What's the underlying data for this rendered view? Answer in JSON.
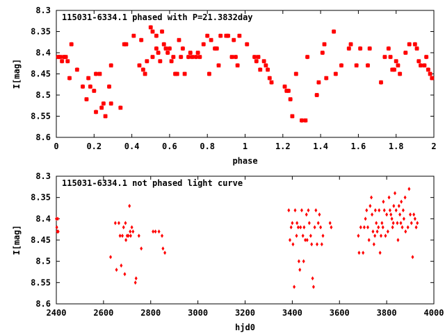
{
  "chart_data": [
    {
      "type": "scatter",
      "title": "115031-6334.1 phased with P=21.3832day",
      "xlabel": "phase",
      "ylabel": "I[mag]",
      "xlim": [
        0,
        2
      ],
      "ylim": [
        8.6,
        8.3
      ],
      "y_inverted": true,
      "xticks": [
        "0",
        "0.2",
        "0.4",
        "0.6",
        "0.8",
        "1",
        "1.2",
        "1.4",
        "1.6",
        "1.8",
        "2"
      ],
      "yticks": [
        "8.3",
        "8.35",
        "8.4",
        "8.45",
        "8.5",
        "8.55",
        "8.6"
      ],
      "grid": false,
      "marker": "plus-star",
      "color": "#ff0000",
      "series": [
        {
          "points": [
            [
              0.01,
              8.41
            ],
            [
              0.02,
              8.41
            ],
            [
              0.03,
              8.42
            ],
            [
              0.04,
              8.41
            ],
            [
              0.05,
              8.41
            ],
            [
              0.06,
              8.42
            ],
            [
              0.07,
              8.46
            ],
            [
              0.08,
              8.38
            ],
            [
              0.11,
              8.44
            ],
            [
              0.14,
              8.48
            ],
            [
              0.16,
              8.51
            ],
            [
              0.17,
              8.46
            ],
            [
              0.18,
              8.48
            ],
            [
              0.2,
              8.49
            ],
            [
              0.21,
              8.45
            ],
            [
              0.21,
              8.54
            ],
            [
              0.23,
              8.45
            ],
            [
              0.24,
              8.53
            ],
            [
              0.25,
              8.52
            ],
            [
              0.26,
              8.55
            ],
            [
              0.28,
              8.48
            ],
            [
              0.29,
              8.52
            ],
            [
              0.29,
              8.43
            ],
            [
              0.34,
              8.53
            ],
            [
              0.36,
              8.38
            ],
            [
              0.37,
              8.38
            ],
            [
              0.41,
              8.36
            ],
            [
              0.44,
              8.43
            ],
            [
              0.45,
              8.37
            ],
            [
              0.46,
              8.44
            ],
            [
              0.47,
              8.45
            ],
            [
              0.48,
              8.42
            ],
            [
              0.5,
              8.34
            ],
            [
              0.51,
              8.35
            ],
            [
              0.51,
              8.41
            ],
            [
              0.53,
              8.36
            ],
            [
              0.53,
              8.39
            ],
            [
              0.54,
              8.4
            ],
            [
              0.55,
              8.42
            ],
            [
              0.56,
              8.35
            ],
            [
              0.57,
              8.38
            ],
            [
              0.58,
              8.39
            ],
            [
              0.59,
              8.4
            ],
            [
              0.6,
              8.39
            ],
            [
              0.61,
              8.42
            ],
            [
              0.62,
              8.41
            ],
            [
              0.63,
              8.45
            ],
            [
              0.64,
              8.45
            ],
            [
              0.65,
              8.37
            ],
            [
              0.66,
              8.41
            ],
            [
              0.67,
              8.39
            ],
            [
              0.68,
              8.45
            ],
            [
              0.7,
              8.41
            ],
            [
              0.71,
              8.4
            ],
            [
              0.72,
              8.41
            ],
            [
              0.74,
              8.41
            ],
            [
              0.75,
              8.4
            ],
            [
              0.76,
              8.41
            ],
            [
              0.78,
              8.38
            ],
            [
              0.8,
              8.36
            ],
            [
              0.81,
              8.45
            ],
            [
              0.82,
              8.37
            ],
            [
              0.84,
              8.39
            ],
            [
              0.85,
              8.39
            ],
            [
              0.86,
              8.43
            ],
            [
              0.87,
              8.36
            ],
            [
              0.9,
              8.36
            ],
            [
              0.91,
              8.36
            ],
            [
              0.93,
              8.41
            ],
            [
              0.94,
              8.37
            ],
            [
              0.95,
              8.41
            ],
            [
              0.96,
              8.43
            ],
            [
              0.97,
              8.36
            ],
            [
              1.01,
              8.38
            ],
            [
              1.05,
              8.41
            ],
            [
              1.06,
              8.42
            ],
            [
              1.07,
              8.41
            ],
            [
              1.08,
              8.44
            ],
            [
              1.1,
              8.42
            ],
            [
              1.11,
              8.43
            ],
            [
              1.12,
              8.44
            ],
            [
              1.13,
              8.46
            ],
            [
              1.14,
              8.47
            ],
            [
              1.21,
              8.48
            ],
            [
              1.22,
              8.49
            ],
            [
              1.23,
              8.49
            ],
            [
              1.24,
              8.51
            ],
            [
              1.25,
              8.55
            ],
            [
              1.27,
              8.45
            ],
            [
              1.3,
              8.56
            ],
            [
              1.32,
              8.56
            ],
            [
              1.33,
              8.41
            ],
            [
              1.38,
              8.5
            ],
            [
              1.39,
              8.47
            ],
            [
              1.41,
              8.4
            ],
            [
              1.42,
              8.38
            ],
            [
              1.43,
              8.46
            ],
            [
              1.47,
              8.35
            ],
            [
              1.48,
              8.45
            ],
            [
              1.51,
              8.43
            ],
            [
              1.55,
              8.39
            ],
            [
              1.56,
              8.38
            ],
            [
              1.59,
              8.43
            ],
            [
              1.61,
              8.39
            ],
            [
              1.65,
              8.43
            ],
            [
              1.66,
              8.39
            ],
            [
              1.72,
              8.47
            ],
            [
              1.74,
              8.41
            ],
            [
              1.76,
              8.39
            ],
            [
              1.77,
              8.41
            ],
            [
              1.78,
              8.44
            ],
            [
              1.79,
              8.44
            ],
            [
              1.8,
              8.42
            ],
            [
              1.81,
              8.43
            ],
            [
              1.82,
              8.45
            ],
            [
              1.85,
              8.4
            ],
            [
              1.87,
              8.38
            ],
            [
              1.9,
              8.38
            ],
            [
              1.91,
              8.39
            ],
            [
              1.92,
              8.42
            ],
            [
              1.93,
              8.43
            ],
            [
              1.95,
              8.43
            ],
            [
              1.96,
              8.41
            ],
            [
              1.97,
              8.44
            ],
            [
              1.98,
              8.45
            ],
            [
              1.99,
              8.46
            ]
          ]
        }
      ]
    },
    {
      "type": "scatter",
      "title": "115031-6334.1 not phased light curve",
      "xlabel": "hjd0",
      "ylabel": "I[mag]",
      "xlim": [
        2400,
        4000
      ],
      "ylim": [
        8.6,
        8.3
      ],
      "y_inverted": true,
      "xticks": [
        "2400",
        "2600",
        "2800",
        "3000",
        "3200",
        "3400",
        "3600",
        "3800",
        "4000"
      ],
      "yticks": [
        "8.3",
        "8.35",
        "8.4",
        "8.45",
        "8.5",
        "8.55",
        "8.6"
      ],
      "grid": false,
      "marker": "diamond",
      "color": "#ff0000",
      "series": [
        {
          "points": [
            [
              2400,
              8.4
            ],
            [
              2402,
              8.42
            ],
            [
              2404,
              8.43
            ],
            [
              2406,
              8.4
            ],
            [
              2408,
              8.43
            ],
            [
              2630,
              8.49
            ],
            [
              2650,
              8.41
            ],
            [
              2655,
              8.52
            ],
            [
              2665,
              8.41
            ],
            [
              2670,
              8.44
            ],
            [
              2675,
              8.51
            ],
            [
              2680,
              8.44
            ],
            [
              2685,
              8.42
            ],
            [
              2690,
              8.53
            ],
            [
              2693,
              8.41
            ],
            [
              2695,
              8.45
            ],
            [
              2700,
              8.44
            ],
            [
              2705,
              8.44
            ],
            [
              2710,
              8.37
            ],
            [
              2713,
              8.43
            ],
            [
              2715,
              8.44
            ],
            [
              2720,
              8.42
            ],
            [
              2725,
              8.43
            ],
            [
              2735,
              8.55
            ],
            [
              2738,
              8.54
            ],
            [
              2750,
              8.44
            ],
            [
              2760,
              8.47
            ],
            [
              2810,
              8.43
            ],
            [
              2820,
              8.43
            ],
            [
              2835,
              8.43
            ],
            [
              2848,
              8.44
            ],
            [
              2852,
              8.47
            ],
            [
              2860,
              8.48
            ],
            [
              3385,
              8.38
            ],
            [
              3390,
              8.45
            ],
            [
              3395,
              8.42
            ],
            [
              3400,
              8.41
            ],
            [
              3403,
              8.46
            ],
            [
              3408,
              8.56
            ],
            [
              3412,
              8.38
            ],
            [
              3418,
              8.44
            ],
            [
              3420,
              8.41
            ],
            [
              3425,
              8.42
            ],
            [
              3428,
              8.5
            ],
            [
              3432,
              8.52
            ],
            [
              3435,
              8.42
            ],
            [
              3440,
              8.38
            ],
            [
              3445,
              8.44
            ],
            [
              3448,
              8.5
            ],
            [
              3450,
              8.42
            ],
            [
              3455,
              8.45
            ],
            [
              3460,
              8.39
            ],
            [
              3463,
              8.45
            ],
            [
              3468,
              8.38
            ],
            [
              3472,
              8.41
            ],
            [
              3478,
              8.44
            ],
            [
              3482,
              8.46
            ],
            [
              3486,
              8.54
            ],
            [
              3490,
              8.56
            ],
            [
              3495,
              8.42
            ],
            [
              3500,
              8.38
            ],
            [
              3505,
              8.46
            ],
            [
              3510,
              8.41
            ],
            [
              3515,
              8.39
            ],
            [
              3520,
              8.42
            ],
            [
              3525,
              8.46
            ],
            [
              3530,
              8.44
            ],
            [
              3560,
              8.41
            ],
            [
              3565,
              8.42
            ],
            [
              3680,
              8.44
            ],
            [
              3683,
              8.48
            ],
            [
              3690,
              8.42
            ],
            [
              3700,
              8.48
            ],
            [
              3705,
              8.42
            ],
            [
              3710,
              8.4
            ],
            [
              3715,
              8.38
            ],
            [
              3720,
              8.42
            ],
            [
              3725,
              8.45
            ],
            [
              3730,
              8.37
            ],
            [
              3735,
              8.35
            ],
            [
              3738,
              8.39
            ],
            [
              3742,
              8.43
            ],
            [
              3746,
              8.46
            ],
            [
              3750,
              8.44
            ],
            [
              3752,
              8.38
            ],
            [
              3756,
              8.41
            ],
            [
              3760,
              8.43
            ],
            [
              3765,
              8.42
            ],
            [
              3768,
              8.38
            ],
            [
              3772,
              8.48
            ],
            [
              3776,
              8.44
            ],
            [
              3780,
              8.41
            ],
            [
              3784,
              8.42
            ],
            [
              3786,
              8.36
            ],
            [
              3790,
              8.38
            ],
            [
              3795,
              8.44
            ],
            [
              3800,
              8.39
            ],
            [
              3805,
              8.43
            ],
            [
              3810,
              8.35
            ],
            [
              3814,
              8.38
            ],
            [
              3818,
              8.39
            ],
            [
              3822,
              8.4
            ],
            [
              3825,
              8.42
            ],
            [
              3828,
              8.41
            ],
            [
              3830,
              8.37
            ],
            [
              3835,
              8.34
            ],
            [
              3840,
              8.38
            ],
            [
              3845,
              8.41
            ],
            [
              3848,
              8.45
            ],
            [
              3852,
              8.37
            ],
            [
              3856,
              8.39
            ],
            [
              3860,
              8.41
            ],
            [
              3862,
              8.36
            ],
            [
              3866,
              8.42
            ],
            [
              3870,
              8.38
            ],
            [
              3873,
              8.4
            ],
            [
              3878,
              8.35
            ],
            [
              3880,
              8.43
            ],
            [
              3890,
              8.42
            ],
            [
              3895,
              8.33
            ],
            [
              3900,
              8.39
            ],
            [
              3905,
              8.41
            ],
            [
              3910,
              8.49
            ],
            [
              3915,
              8.39
            ],
            [
              3920,
              8.4
            ],
            [
              3925,
              8.42
            ],
            [
              3930,
              8.41
            ]
          ]
        }
      ]
    }
  ]
}
